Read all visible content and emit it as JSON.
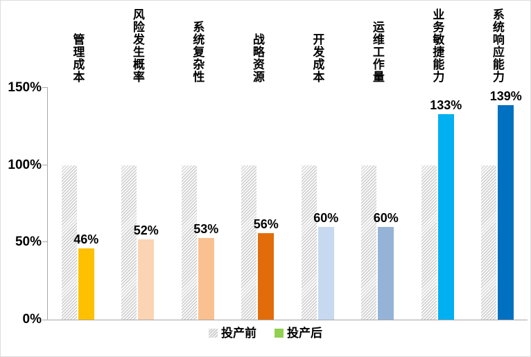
{
  "chart_data": {
    "type": "bar",
    "title": "",
    "categories": [
      "管理成本",
      "风险发生概率",
      "系统复杂性",
      "战略资源",
      "开发成本",
      "运维工作量",
      "业务敏捷能力",
      "系统响应能力"
    ],
    "series": [
      {
        "name": "投产前",
        "values": [
          100,
          100,
          100,
          100,
          100,
          100,
          100,
          100
        ],
        "style": "hatched",
        "hatch_color": "#BFBFBF"
      },
      {
        "name": "投产后",
        "values": [
          46,
          52,
          53,
          56,
          60,
          60,
          133,
          139
        ],
        "colors": [
          "#FFC000",
          "#FBD4B4",
          "#FAC08F",
          "#E36C0A",
          "#C6D9F0",
          "#95B3D7",
          "#00B0F0",
          "#0070C0"
        ]
      }
    ],
    "value_labels": [
      "46%",
      "52%",
      "53%",
      "56%",
      "60%",
      "60%",
      "133%",
      "139%"
    ],
    "y_axis": {
      "max": 150,
      "ticks": [
        {
          "label": "0%",
          "value": 0
        },
        {
          "label": "50%",
          "value": 50
        },
        {
          "label": "100%",
          "value": 100
        },
        {
          "label": "150%",
          "value": 150
        }
      ]
    },
    "grid": false,
    "axis_color": "#A6A6A6",
    "legend": {
      "position": "bottom",
      "items": [
        {
          "label": "投产前",
          "swatch": "hatch"
        },
        {
          "label": "投产后",
          "swatch_color": "#92D050"
        }
      ]
    }
  }
}
